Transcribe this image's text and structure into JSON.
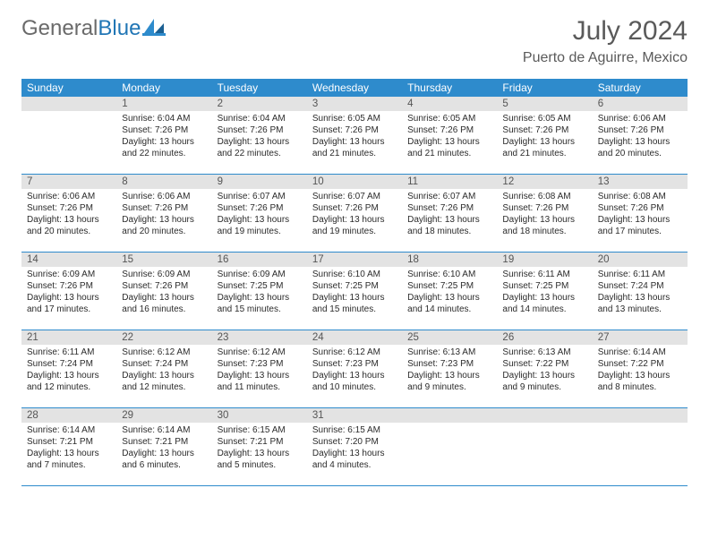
{
  "brand": {
    "text_gray": "General",
    "text_blue": "Blue"
  },
  "title": "July 2024",
  "location": "Puerto de Aguirre, Mexico",
  "dow": [
    "Sunday",
    "Monday",
    "Tuesday",
    "Wednesday",
    "Thursday",
    "Friday",
    "Saturday"
  ],
  "colors": {
    "header_blue": "#2e8bcc",
    "daynum_bg": "#e3e3e3",
    "logo_gray": "#6a6a6a",
    "logo_blue": "#2176b5"
  },
  "weeks": [
    [
      {
        "n": "",
        "sr": "",
        "ss": "",
        "dl": ""
      },
      {
        "n": "1",
        "sr": "Sunrise: 6:04 AM",
        "ss": "Sunset: 7:26 PM",
        "dl": "Daylight: 13 hours and 22 minutes."
      },
      {
        "n": "2",
        "sr": "Sunrise: 6:04 AM",
        "ss": "Sunset: 7:26 PM",
        "dl": "Daylight: 13 hours and 22 minutes."
      },
      {
        "n": "3",
        "sr": "Sunrise: 6:05 AM",
        "ss": "Sunset: 7:26 PM",
        "dl": "Daylight: 13 hours and 21 minutes."
      },
      {
        "n": "4",
        "sr": "Sunrise: 6:05 AM",
        "ss": "Sunset: 7:26 PM",
        "dl": "Daylight: 13 hours and 21 minutes."
      },
      {
        "n": "5",
        "sr": "Sunrise: 6:05 AM",
        "ss": "Sunset: 7:26 PM",
        "dl": "Daylight: 13 hours and 21 minutes."
      },
      {
        "n": "6",
        "sr": "Sunrise: 6:06 AM",
        "ss": "Sunset: 7:26 PM",
        "dl": "Daylight: 13 hours and 20 minutes."
      }
    ],
    [
      {
        "n": "7",
        "sr": "Sunrise: 6:06 AM",
        "ss": "Sunset: 7:26 PM",
        "dl": "Daylight: 13 hours and 20 minutes."
      },
      {
        "n": "8",
        "sr": "Sunrise: 6:06 AM",
        "ss": "Sunset: 7:26 PM",
        "dl": "Daylight: 13 hours and 20 minutes."
      },
      {
        "n": "9",
        "sr": "Sunrise: 6:07 AM",
        "ss": "Sunset: 7:26 PM",
        "dl": "Daylight: 13 hours and 19 minutes."
      },
      {
        "n": "10",
        "sr": "Sunrise: 6:07 AM",
        "ss": "Sunset: 7:26 PM",
        "dl": "Daylight: 13 hours and 19 minutes."
      },
      {
        "n": "11",
        "sr": "Sunrise: 6:07 AM",
        "ss": "Sunset: 7:26 PM",
        "dl": "Daylight: 13 hours and 18 minutes."
      },
      {
        "n": "12",
        "sr": "Sunrise: 6:08 AM",
        "ss": "Sunset: 7:26 PM",
        "dl": "Daylight: 13 hours and 18 minutes."
      },
      {
        "n": "13",
        "sr": "Sunrise: 6:08 AM",
        "ss": "Sunset: 7:26 PM",
        "dl": "Daylight: 13 hours and 17 minutes."
      }
    ],
    [
      {
        "n": "14",
        "sr": "Sunrise: 6:09 AM",
        "ss": "Sunset: 7:26 PM",
        "dl": "Daylight: 13 hours and 17 minutes."
      },
      {
        "n": "15",
        "sr": "Sunrise: 6:09 AM",
        "ss": "Sunset: 7:26 PM",
        "dl": "Daylight: 13 hours and 16 minutes."
      },
      {
        "n": "16",
        "sr": "Sunrise: 6:09 AM",
        "ss": "Sunset: 7:25 PM",
        "dl": "Daylight: 13 hours and 15 minutes."
      },
      {
        "n": "17",
        "sr": "Sunrise: 6:10 AM",
        "ss": "Sunset: 7:25 PM",
        "dl": "Daylight: 13 hours and 15 minutes."
      },
      {
        "n": "18",
        "sr": "Sunrise: 6:10 AM",
        "ss": "Sunset: 7:25 PM",
        "dl": "Daylight: 13 hours and 14 minutes."
      },
      {
        "n": "19",
        "sr": "Sunrise: 6:11 AM",
        "ss": "Sunset: 7:25 PM",
        "dl": "Daylight: 13 hours and 14 minutes."
      },
      {
        "n": "20",
        "sr": "Sunrise: 6:11 AM",
        "ss": "Sunset: 7:24 PM",
        "dl": "Daylight: 13 hours and 13 minutes."
      }
    ],
    [
      {
        "n": "21",
        "sr": "Sunrise: 6:11 AM",
        "ss": "Sunset: 7:24 PM",
        "dl": "Daylight: 13 hours and 12 minutes."
      },
      {
        "n": "22",
        "sr": "Sunrise: 6:12 AM",
        "ss": "Sunset: 7:24 PM",
        "dl": "Daylight: 13 hours and 12 minutes."
      },
      {
        "n": "23",
        "sr": "Sunrise: 6:12 AM",
        "ss": "Sunset: 7:23 PM",
        "dl": "Daylight: 13 hours and 11 minutes."
      },
      {
        "n": "24",
        "sr": "Sunrise: 6:12 AM",
        "ss": "Sunset: 7:23 PM",
        "dl": "Daylight: 13 hours and 10 minutes."
      },
      {
        "n": "25",
        "sr": "Sunrise: 6:13 AM",
        "ss": "Sunset: 7:23 PM",
        "dl": "Daylight: 13 hours and 9 minutes."
      },
      {
        "n": "26",
        "sr": "Sunrise: 6:13 AM",
        "ss": "Sunset: 7:22 PM",
        "dl": "Daylight: 13 hours and 9 minutes."
      },
      {
        "n": "27",
        "sr": "Sunrise: 6:14 AM",
        "ss": "Sunset: 7:22 PM",
        "dl": "Daylight: 13 hours and 8 minutes."
      }
    ],
    [
      {
        "n": "28",
        "sr": "Sunrise: 6:14 AM",
        "ss": "Sunset: 7:21 PM",
        "dl": "Daylight: 13 hours and 7 minutes."
      },
      {
        "n": "29",
        "sr": "Sunrise: 6:14 AM",
        "ss": "Sunset: 7:21 PM",
        "dl": "Daylight: 13 hours and 6 minutes."
      },
      {
        "n": "30",
        "sr": "Sunrise: 6:15 AM",
        "ss": "Sunset: 7:21 PM",
        "dl": "Daylight: 13 hours and 5 minutes."
      },
      {
        "n": "31",
        "sr": "Sunrise: 6:15 AM",
        "ss": "Sunset: 7:20 PM",
        "dl": "Daylight: 13 hours and 4 minutes."
      },
      {
        "n": "",
        "sr": "",
        "ss": "",
        "dl": ""
      },
      {
        "n": "",
        "sr": "",
        "ss": "",
        "dl": ""
      },
      {
        "n": "",
        "sr": "",
        "ss": "",
        "dl": ""
      }
    ]
  ]
}
